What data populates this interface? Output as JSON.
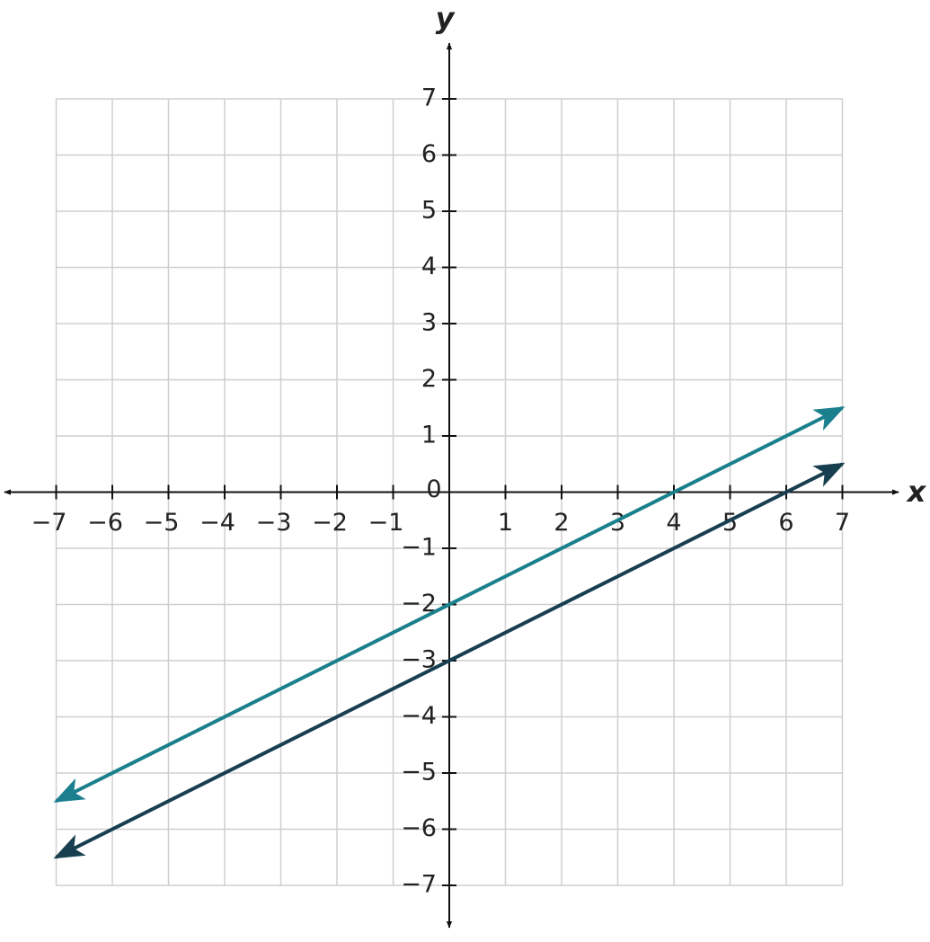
{
  "chart_data": {
    "type": "line",
    "x_label": "x",
    "y_label": "y",
    "x": [
      -7,
      7
    ],
    "series": [
      {
        "color": "#1b7f8e",
        "values": [
          -5.5,
          1.5
        ]
      },
      {
        "color": "#173f4f",
        "values": [
          -6.5,
          0.5
        ]
      }
    ],
    "xlim": [
      -7,
      7
    ],
    "ylim": [
      -7,
      7
    ],
    "xticks": [
      {
        "value": -7,
        "label": "−7"
      },
      {
        "value": -6,
        "label": "−6"
      },
      {
        "value": -5,
        "label": "−5"
      },
      {
        "value": -4,
        "label": "−4"
      },
      {
        "value": -3,
        "label": "−3"
      },
      {
        "value": -2,
        "label": "−2"
      },
      {
        "value": -1,
        "label": "−1"
      },
      0,
      1,
      2,
      3,
      4,
      5,
      6,
      7
    ],
    "yticks": [
      {
        "value": -7,
        "label": "−7"
      },
      {
        "value": -6,
        "label": "−6"
      },
      {
        "value": -5,
        "label": "−5"
      },
      {
        "value": -4,
        "label": "−4"
      },
      {
        "value": -3,
        "label": "−3"
      },
      {
        "value": -2,
        "label": "−2"
      },
      {
        "value": -1,
        "label": "−1"
      },
      1,
      2,
      3,
      4,
      5,
      6,
      7
    ],
    "grid": true
  }
}
